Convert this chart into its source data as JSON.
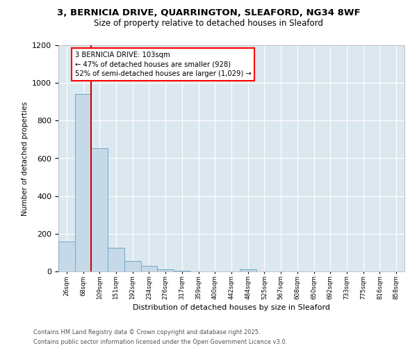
{
  "title_line1": "3, BERNICIA DRIVE, QUARRINGTON, SLEAFORD, NG34 8WF",
  "title_line2": "Size of property relative to detached houses in Sleaford",
  "xlabel": "Distribution of detached houses by size in Sleaford",
  "ylabel": "Number of detached properties",
  "bin_labels": [
    "26sqm",
    "68sqm",
    "109sqm",
    "151sqm",
    "192sqm",
    "234sqm",
    "276sqm",
    "317sqm",
    "359sqm",
    "400sqm",
    "442sqm",
    "484sqm",
    "525sqm",
    "567sqm",
    "608sqm",
    "650sqm",
    "692sqm",
    "733sqm",
    "775sqm",
    "816sqm",
    "858sqm"
  ],
  "bar_values": [
    160,
    940,
    655,
    125,
    57,
    28,
    10,
    5,
    0,
    0,
    0,
    10,
    0,
    0,
    0,
    0,
    0,
    0,
    0,
    0,
    0
  ],
  "bar_color": "#c5d9e8",
  "bar_edge_color": "#6fa8c8",
  "annotation_line1": "3 BERNICIA DRIVE: 103sqm",
  "annotation_line2": "← 47% of detached houses are smaller (928)",
  "annotation_line3": "52% of semi-detached houses are larger (1,029) →",
  "red_line_color": "#cc0000",
  "red_line_x": 2.5,
  "ylim": [
    0,
    1200
  ],
  "yticks": [
    0,
    200,
    400,
    600,
    800,
    1000,
    1200
  ],
  "footer_line1": "Contains HM Land Registry data © Crown copyright and database right 2025.",
  "footer_line2": "Contains public sector information licensed under the Open Government Licence v3.0.",
  "plot_bg_color": "#dce8f0",
  "fig_bg_color": "#ffffff"
}
